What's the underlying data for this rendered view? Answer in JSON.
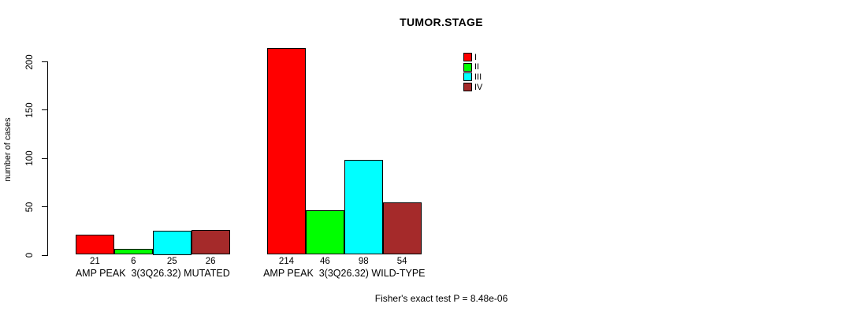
{
  "chart_data": {
    "type": "bar",
    "title": "TUMOR.STAGE",
    "ylabel": "number of cases",
    "ylim": [
      0,
      214
    ],
    "yticks": [
      0,
      50,
      100,
      150,
      200
    ],
    "grid": false,
    "legend_position": "top-right-inside",
    "categories": [
      "AMP PEAK  3(3Q26.32) MUTATED",
      "AMP PEAK  3(3Q26.32) WILD-TYPE"
    ],
    "series": [
      {
        "name": "I",
        "color": "#ff0000",
        "values": [
          21,
          214
        ]
      },
      {
        "name": "II",
        "color": "#00ff00",
        "values": [
          6,
          46
        ]
      },
      {
        "name": "III",
        "color": "#00ffff",
        "values": [
          25,
          98
        ]
      },
      {
        "name": "IV",
        "color": "#a52a2a",
        "values": [
          26,
          54
        ]
      }
    ],
    "annotation": "Fisher's exact test P = 8.48e-06"
  }
}
